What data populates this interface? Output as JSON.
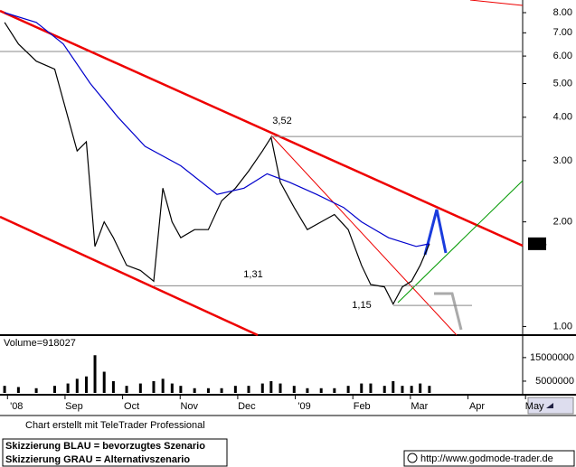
{
  "chart_data": [
    {
      "type": "line",
      "log_scale": true,
      "ylim": [
        0.95,
        8.7
      ],
      "yticks": [
        {
          "value": 1,
          "label": "1.00"
        },
        {
          "value": 2,
          "label": "2.00"
        },
        {
          "value": 3,
          "label": "3.00"
        },
        {
          "value": 4,
          "label": "4.00"
        },
        {
          "value": 5,
          "label": "5.00"
        },
        {
          "value": 6,
          "label": "6.00"
        },
        {
          "value": 7,
          "label": "7.00"
        },
        {
          "value": 8,
          "label": "8.00"
        }
      ],
      "xlim": [
        -0.13,
        8.95
      ],
      "xticks": [
        {
          "value": 0,
          "label": "'08"
        },
        {
          "value": 1,
          "label": "Sep"
        },
        {
          "value": 2,
          "label": "Oct"
        },
        {
          "value": 3,
          "label": "Nov"
        },
        {
          "value": 4,
          "label": "Dec"
        },
        {
          "value": 5,
          "label": "'09"
        },
        {
          "value": 6,
          "label": "Feb"
        },
        {
          "value": 7,
          "label": "Mar"
        },
        {
          "value": 8,
          "label": "Apr"
        },
        {
          "value": 9,
          "label": "May"
        }
      ],
      "series": [
        {
          "color": "#000000",
          "x": [
            -0.05,
            0.19,
            0.5,
            0.82,
            1.05,
            1.21,
            1.37,
            1.52,
            1.68,
            1.84,
            2.07,
            2.31,
            2.54,
            2.7,
            2.86,
            3.01,
            3.25,
            3.49,
            3.72,
            3.96,
            4.19,
            4.43,
            4.58,
            4.74,
            4.98,
            5.21,
            5.45,
            5.68,
            5.92,
            6.15,
            6.31,
            6.55,
            6.7,
            6.86,
            7.02,
            7.17,
            7.33
          ],
          "values": [
            7.5,
            6.5,
            5.8,
            5.5,
            4.0,
            3.2,
            3.4,
            1.7,
            2.0,
            1.8,
            1.5,
            1.45,
            1.35,
            2.5,
            2.0,
            1.8,
            1.9,
            1.9,
            2.3,
            2.5,
            2.8,
            3.2,
            3.5,
            2.6,
            2.2,
            1.9,
            2.0,
            2.1,
            1.9,
            1.5,
            1.32,
            1.3,
            1.16,
            1.3,
            1.35,
            1.5,
            1.73
          ]
        },
        {
          "color": "#0000cc",
          "x": [
            -0.05,
            0.5,
            0.97,
            1.44,
            1.92,
            2.39,
            3.01,
            3.64,
            4.11,
            4.51,
            4.9,
            5.37,
            5.84,
            6.15,
            6.62,
            7.1,
            7.33
          ],
          "values": [
            8.0,
            7.5,
            6.5,
            5.0,
            4.0,
            3.3,
            2.9,
            2.4,
            2.5,
            2.75,
            2.6,
            2.4,
            2.2,
            2.0,
            1.8,
            1.7,
            1.73
          ]
        }
      ],
      "annotations": [
        {
          "text": "3,52",
          "value": 3.52
        },
        {
          "text": "1,31",
          "value": 1.31
        },
        {
          "text": "1,15",
          "value": 1.15
        }
      ],
      "last_value": 1.73
    },
    {
      "type": "bar",
      "title": "Volume=918027",
      "ylim": [
        0,
        23000000
      ],
      "yticks": [
        5000000,
        15000000
      ],
      "color": "#000000",
      "x": [
        -0.05,
        0.19,
        0.5,
        0.82,
        1.05,
        1.21,
        1.37,
        1.52,
        1.68,
        1.84,
        2.07,
        2.31,
        2.54,
        2.7,
        2.86,
        3.01,
        3.25,
        3.49,
        3.72,
        3.96,
        4.19,
        4.43,
        4.58,
        4.74,
        4.98,
        5.21,
        5.45,
        5.68,
        5.92,
        6.15,
        6.31,
        6.55,
        6.7,
        6.86,
        7.02,
        7.17,
        7.33
      ],
      "values": [
        3000000,
        2500000,
        2000000,
        3000000,
        4000000,
        6000000,
        7000000,
        16000000,
        9000000,
        5000000,
        3000000,
        4000000,
        5000000,
        6000000,
        4000000,
        3000000,
        2000000,
        2000000,
        2000000,
        3000000,
        3000000,
        4000000,
        5000000,
        4000000,
        3000000,
        2000000,
        2000000,
        2000000,
        3000000,
        4000000,
        4000000,
        3000000,
        5000000,
        3000000,
        3000000,
        4000000,
        3000000
      ]
    }
  ],
  "footer": {
    "credit": "Chart erstellt mit TeleTrader Professional",
    "notes": [
      "Skizzierung BLAU = bevorzugtes Szenario",
      "Skizzierung GRAU = Alternativszenario"
    ],
    "source": "http://www.godmode-trader.de"
  }
}
